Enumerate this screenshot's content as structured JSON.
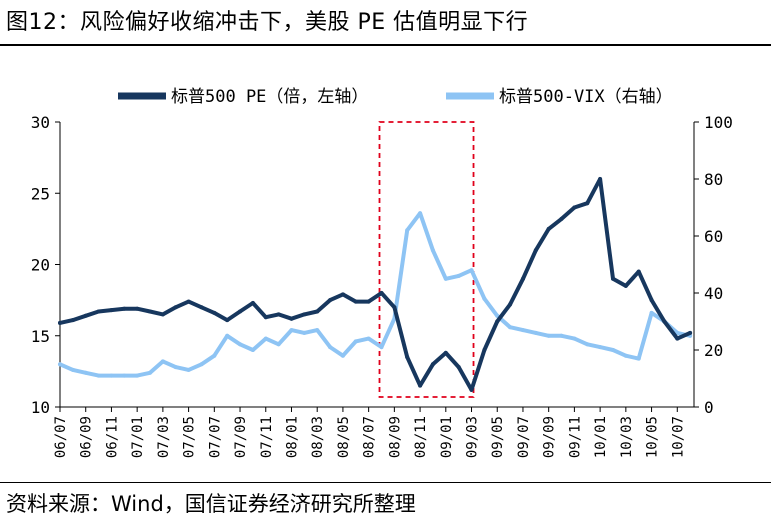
{
  "figure_title": "图12：风险偏好收缩冲击下，美股 PE 估值明显下行",
  "source_note": "资料来源：Wind，国信证券经济研究所整理",
  "chart_data": {
    "type": "line",
    "title": "",
    "xlabel": "",
    "ylabel_left": "",
    "ylabel_right": "",
    "x_ticks": [
      "06/07",
      "06/09",
      "06/11",
      "07/01",
      "07/03",
      "07/05",
      "07/07",
      "07/09",
      "07/11",
      "08/01",
      "08/03",
      "08/05",
      "08/07",
      "08/09",
      "08/11",
      "09/01",
      "09/03",
      "09/05",
      "09/07",
      "09/09",
      "09/11",
      "10/01",
      "10/03",
      "10/05",
      "10/07"
    ],
    "ylim_left": [
      10,
      30
    ],
    "yticks_left": [
      "10",
      "15",
      "20",
      "25",
      "30"
    ],
    "ylim_right": [
      0,
      100
    ],
    "yticks_right": [
      "0",
      "20",
      "40",
      "60",
      "80",
      "100"
    ],
    "legend_position": "top",
    "grid": false,
    "highlight_box": {
      "x_from": "2008/08",
      "x_to": "2009/03",
      "color": "#e0001b",
      "style": "dashed"
    },
    "series": [
      {
        "name": "标普500 PE（倍，左轴）",
        "axis": "left",
        "color": "#17375e",
        "points": [
          [
            "2006/07",
            15.9
          ],
          [
            "2006/08",
            16.1
          ],
          [
            "2006/09",
            16.4
          ],
          [
            "2006/10",
            16.7
          ],
          [
            "2006/11",
            16.8
          ],
          [
            "2006/12",
            16.9
          ],
          [
            "2007/01",
            16.9
          ],
          [
            "2007/02",
            16.7
          ],
          [
            "2007/03",
            16.5
          ],
          [
            "2007/04",
            17.0
          ],
          [
            "2007/05",
            17.4
          ],
          [
            "2007/06",
            17.0
          ],
          [
            "2007/07",
            16.6
          ],
          [
            "2007/08",
            16.1
          ],
          [
            "2007/09",
            16.7
          ],
          [
            "2007/10",
            17.3
          ],
          [
            "2007/11",
            16.3
          ],
          [
            "2007/12",
            16.5
          ],
          [
            "2008/01",
            16.2
          ],
          [
            "2008/02",
            16.5
          ],
          [
            "2008/03",
            16.7
          ],
          [
            "2008/04",
            17.5
          ],
          [
            "2008/05",
            17.9
          ],
          [
            "2008/06",
            17.4
          ],
          [
            "2008/07",
            17.4
          ],
          [
            "2008/08",
            18.0
          ],
          [
            "2008/09",
            17.0
          ],
          [
            "2008/10",
            13.5
          ],
          [
            "2008/11",
            11.5
          ],
          [
            "2008/12",
            13.0
          ],
          [
            "2009/01",
            13.8
          ],
          [
            "2009/02",
            12.8
          ],
          [
            "2009/03",
            11.2
          ],
          [
            "2009/04",
            14.0
          ],
          [
            "2009/05",
            16.0
          ],
          [
            "2009/06",
            17.2
          ],
          [
            "2009/07",
            19.0
          ],
          [
            "2009/08",
            21.0
          ],
          [
            "2009/09",
            22.5
          ],
          [
            "2009/10",
            23.2
          ],
          [
            "2009/11",
            24.0
          ],
          [
            "2009/12",
            24.3
          ],
          [
            "2010/01",
            26.0
          ],
          [
            "2010/02",
            19.0
          ],
          [
            "2010/03",
            18.5
          ],
          [
            "2010/04",
            19.5
          ],
          [
            "2010/05",
            17.5
          ],
          [
            "2010/06",
            16.0
          ],
          [
            "2010/07",
            14.8
          ],
          [
            "2010/08",
            15.2
          ]
        ]
      },
      {
        "name": "标普500-VIX（右轴）",
        "axis": "right",
        "color": "#8ec4f4",
        "points": [
          [
            "2006/07",
            15
          ],
          [
            "2006/08",
            13
          ],
          [
            "2006/09",
            12
          ],
          [
            "2006/10",
            11
          ],
          [
            "2006/11",
            11
          ],
          [
            "2006/12",
            11
          ],
          [
            "2007/01",
            11
          ],
          [
            "2007/02",
            12
          ],
          [
            "2007/03",
            16
          ],
          [
            "2007/04",
            14
          ],
          [
            "2007/05",
            13
          ],
          [
            "2007/06",
            15
          ],
          [
            "2007/07",
            18
          ],
          [
            "2007/08",
            25
          ],
          [
            "2007/09",
            22
          ],
          [
            "2007/10",
            20
          ],
          [
            "2007/11",
            24
          ],
          [
            "2007/12",
            22
          ],
          [
            "2008/01",
            27
          ],
          [
            "2008/02",
            26
          ],
          [
            "2008/03",
            27
          ],
          [
            "2008/04",
            21
          ],
          [
            "2008/05",
            18
          ],
          [
            "2008/06",
            23
          ],
          [
            "2008/07",
            24
          ],
          [
            "2008/08",
            21
          ],
          [
            "2008/09",
            31
          ],
          [
            "2008/10",
            62
          ],
          [
            "2008/11",
            68
          ],
          [
            "2008/12",
            55
          ],
          [
            "2009/01",
            45
          ],
          [
            "2009/02",
            46
          ],
          [
            "2009/03",
            48
          ],
          [
            "2009/04",
            38
          ],
          [
            "2009/05",
            32
          ],
          [
            "2009/06",
            28
          ],
          [
            "2009/07",
            27
          ],
          [
            "2009/08",
            26
          ],
          [
            "2009/09",
            25
          ],
          [
            "2009/10",
            25
          ],
          [
            "2009/11",
            24
          ],
          [
            "2009/12",
            22
          ],
          [
            "2010/01",
            21
          ],
          [
            "2010/02",
            20
          ],
          [
            "2010/03",
            18
          ],
          [
            "2010/04",
            17
          ],
          [
            "2010/05",
            33
          ],
          [
            "2010/06",
            30
          ],
          [
            "2010/07",
            26
          ],
          [
            "2010/08",
            25
          ]
        ]
      }
    ]
  }
}
